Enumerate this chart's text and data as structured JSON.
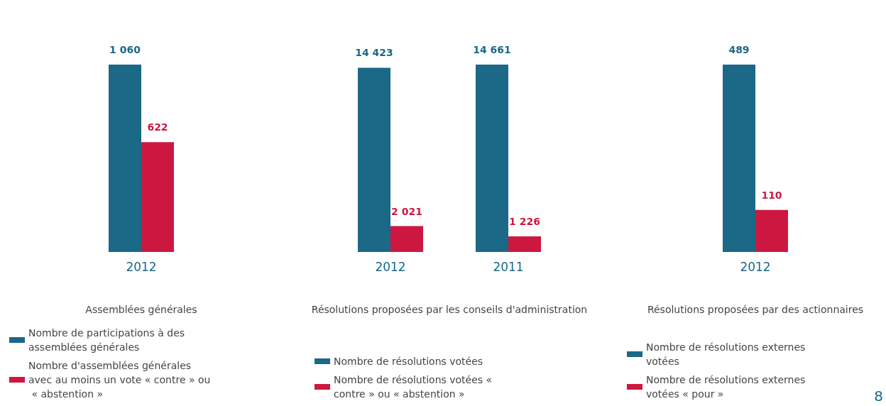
{
  "chart_data": [
    {
      "type": "bar",
      "xlabel": "Assemblées générales",
      "categories": [
        "2012"
      ],
      "legend": "bottom left",
      "series": [
        {
          "name": "Nombre de participations à des assemblées générales",
          "color": "#1b6887",
          "values": [
            1060
          ],
          "value_labels": [
            "1 060"
          ]
        },
        {
          "name": "Nombre d'assemblées générales avec au moins un vote « contre » ou « abstention »",
          "color": "#cc1840",
          "values": [
            622
          ],
          "value_labels": [
            "622"
          ]
        }
      ]
    },
    {
      "type": "bar",
      "xlabel": "Résolutions proposées par les conseils d'administration",
      "categories": [
        "2012",
        "2011"
      ],
      "legend": "bottom left",
      "series": [
        {
          "name": "Nombre de résolutions votées",
          "color": "#1b6887",
          "values": [
            14423,
            14661
          ],
          "value_labels": [
            "14 423",
            "14 661"
          ]
        },
        {
          "name": "Nombre de résolutions votées « contre » ou « abstention »",
          "color": "#cc1840",
          "values": [
            2021,
            1226
          ],
          "value_labels": [
            "2 021",
            "1 226"
          ]
        }
      ]
    },
    {
      "type": "bar",
      "xlabel": "Résolutions proposées par des actionnaires",
      "categories": [
        "2012"
      ],
      "legend": "bottom left",
      "annotations": [
        "8"
      ],
      "series": [
        {
          "name": "Nombre de résolutions externes votées",
          "color": "#1b6887",
          "values": [
            489
          ],
          "value_labels": [
            "489"
          ]
        },
        {
          "name": "Nombre de résolutions externes votées « pour »",
          "color": "#cc1840",
          "values": [
            110
          ],
          "value_labels": [
            "110"
          ]
        }
      ]
    }
  ]
}
